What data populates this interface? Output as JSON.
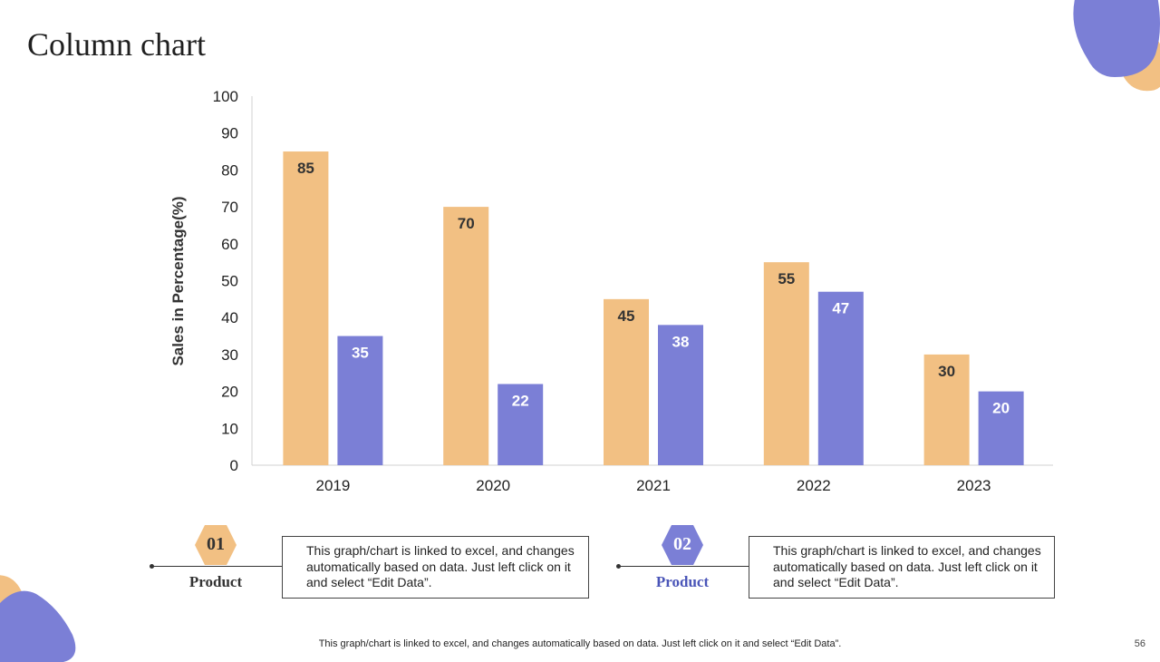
{
  "slide": {
    "title": "Column chart",
    "page_number": "56",
    "footer_note": "This graph/chart is linked to excel,  and changes automatically based on data. Just left click on it and select “Edit Data”."
  },
  "colors": {
    "orange": "#F2C083",
    "purple": "#7B7FD6",
    "product2_text": "#4A55B8",
    "dark_text": "#333333",
    "white": "#FFFFFF"
  },
  "chart_data": {
    "type": "bar",
    "title": "",
    "xlabel": "",
    "ylabel": "Sales in Percentage(%)",
    "ylim": [
      0,
      100
    ],
    "yticks": [
      0,
      10,
      20,
      30,
      40,
      50,
      60,
      70,
      80,
      90,
      100
    ],
    "categories": [
      "2019",
      "2020",
      "2021",
      "2022",
      "2023"
    ],
    "series": [
      {
        "name": "Product 01",
        "color": "#F2C083",
        "label_color": "#333333",
        "values": [
          85,
          70,
          45,
          55,
          30
        ]
      },
      {
        "name": "Product 02",
        "color": "#7B7FD6",
        "label_color": "#FFFFFF",
        "values": [
          35,
          22,
          38,
          47,
          20
        ]
      }
    ],
    "grid": false,
    "legend": "bottom"
  },
  "legend_items": [
    {
      "number": "01",
      "label": "Product",
      "description": "This graph/chart is linked to excel, and changes automatically based on data. Just left click on it and select “Edit Data”."
    },
    {
      "number": "02",
      "label": "Product",
      "description": "This graph/chart is linked to excel, and changes automatically based on data. Just left click on it and select “Edit Data”."
    }
  ]
}
